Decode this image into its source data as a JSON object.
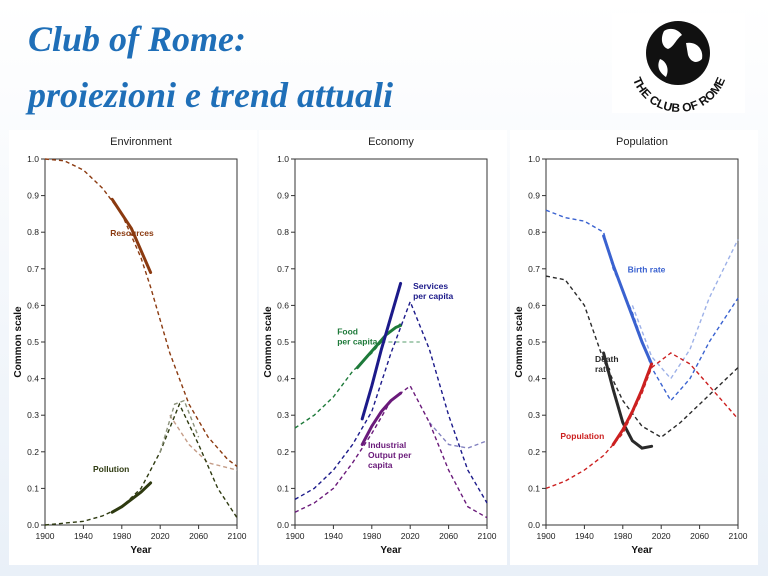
{
  "slide": {
    "title_line1": "Club of Rome:",
    "title_line2": "proiezioni e trend attuali"
  },
  "logo": {
    "text": "THE CLUB OF ROME"
  },
  "colors": {
    "title": "#1f6fb8",
    "resources": "#8b3a10",
    "pollution": "#2e3a10",
    "food": "#1e7a3a",
    "services": "#1c1a8a",
    "output": "#6a1a7a",
    "birth": "#3a62d0",
    "death": "#2a2a2a",
    "population": "#cc2020"
  },
  "chart_data": [
    {
      "type": "line",
      "title": "Environment",
      "xlabel": "Year",
      "ylabel": "Common scale",
      "xlim": [
        1900,
        2100
      ],
      "ylim": [
        0,
        1.0
      ],
      "xticks": [
        "1900",
        "1940",
        "1980",
        "2020",
        "2060",
        "2100"
      ],
      "yticks": [
        "0.0",
        "0.1",
        "0.2",
        "0.3",
        "0.4",
        "0.5",
        "0.6",
        "0.7",
        "0.8",
        "0.9",
        "1.0"
      ],
      "series": [
        {
          "name": "Resources",
          "label": "Resources",
          "label_x": 1968,
          "label_y": 0.79,
          "color": "#8b3a10",
          "projection": {
            "x": [
              1900,
              1920,
              1940,
              1960,
              1980,
              2000,
              2010,
              2030,
              2050,
              2070,
              2090,
              2100
            ],
            "y": [
              1.0,
              0.995,
              0.97,
              0.92,
              0.85,
              0.73,
              0.65,
              0.47,
              0.33,
              0.24,
              0.18,
              0.16
            ]
          },
          "alt": {
            "x": [
              2030,
              2050,
              2070,
              2100
            ],
            "y": [
              0.3,
              0.22,
              0.17,
              0.15
            ]
          },
          "projection_light": {
            "x": [],
            "y": []
          },
          "observed": {
            "x": [
              1970,
              1980,
              1990,
              2000,
              2010
            ],
            "y": [
              0.89,
              0.85,
              0.81,
              0.75,
              0.69
            ]
          }
        },
        {
          "name": "Pollution",
          "label": "Pollution",
          "label_x": 1950,
          "label_y": 0.145,
          "color": "#2e3a10",
          "projection": {
            "x": [
              1900,
              1940,
              1960,
              1980,
              2000,
              2020,
              2040,
              2060,
              2080,
              2100
            ],
            "y": [
              0.0,
              0.01,
              0.025,
              0.05,
              0.1,
              0.2,
              0.33,
              0.22,
              0.1,
              0.02
            ]
          },
          "alt": {
            "x": [],
            "y": []
          },
          "projection_light": {
            "x": [
              2020,
              2035,
              2045,
              2060
            ],
            "y": [
              0.2,
              0.33,
              0.34,
              0.24
            ]
          },
          "observed": {
            "x": [
              1970,
              1980,
              1990,
              2000,
              2010
            ],
            "y": [
              0.035,
              0.05,
              0.07,
              0.09,
              0.115
            ]
          }
        }
      ]
    },
    {
      "type": "line",
      "title": "Economy",
      "xlabel": "Year",
      "ylabel": "Common scale",
      "xlim": [
        1900,
        2100
      ],
      "ylim": [
        0,
        1.0
      ],
      "xticks": [
        "1900",
        "1940",
        "1980",
        "2020",
        "2060",
        "2100"
      ],
      "yticks": [
        "0.0",
        "0.1",
        "0.2",
        "0.3",
        "0.4",
        "0.5",
        "0.6",
        "0.7",
        "0.8",
        "0.9",
        "1.0"
      ],
      "series": [
        {
          "name": "Food per capita",
          "label": "Food\nper capita",
          "label_x": 1944,
          "label_y": 0.52,
          "color": "#1e7a3a",
          "projection": {
            "x": [
              1900,
              1920,
              1940,
              1960,
              1980,
              2000,
              2010
            ],
            "y": [
              0.265,
              0.3,
              0.35,
              0.42,
              0.47,
              0.53,
              0.55
            ]
          },
          "alt": {
            "x": [
              1990,
              2010,
              2030
            ],
            "y": [
              0.5,
              0.5,
              0.5
            ]
          },
          "projection_light": {
            "x": [],
            "y": []
          },
          "observed": {
            "x": [
              1965,
              1975,
              1985,
              1995,
              2005,
              2010
            ],
            "y": [
              0.43,
              0.46,
              0.49,
              0.52,
              0.54,
              0.545
            ]
          }
        },
        {
          "name": "Services per capita",
          "label": "Services\nper capita",
          "label_x": 2023,
          "label_y": 0.645,
          "color": "#1c1a8a",
          "projection": {
            "x": [
              1900,
              1920,
              1940,
              1960,
              1980,
              2000,
              2020,
              2040,
              2060,
              2080,
              2100
            ],
            "y": [
              0.07,
              0.1,
              0.15,
              0.22,
              0.31,
              0.47,
              0.61,
              0.48,
              0.3,
              0.15,
              0.06
            ]
          },
          "alt": {
            "x": [],
            "y": []
          },
          "projection_light": {
            "x": [
              2040,
              2060,
              2080,
              2100
            ],
            "y": [
              0.28,
              0.22,
              0.21,
              0.23
            ]
          },
          "observed": {
            "x": [
              1970,
              1980,
              1990,
              2000,
              2010
            ],
            "y": [
              0.29,
              0.38,
              0.48,
              0.57,
              0.66
            ]
          }
        },
        {
          "name": "Industrial Output per capita",
          "label": "Industrial\nOutput per\ncapita",
          "label_x": 1976,
          "label_y": 0.21,
          "color": "#6a1a7a",
          "projection": {
            "x": [
              1900,
              1920,
              1940,
              1960,
              1980,
              2000,
              2020,
              2040,
              2060,
              2080,
              2100
            ],
            "y": [
              0.035,
              0.06,
              0.1,
              0.17,
              0.25,
              0.34,
              0.38,
              0.28,
              0.15,
              0.05,
              0.02
            ]
          },
          "alt": {
            "x": [],
            "y": []
          },
          "projection_light": {
            "x": [],
            "y": []
          },
          "observed": {
            "x": [
              1970,
              1980,
              1990,
              2000,
              2010
            ],
            "y": [
              0.22,
              0.27,
              0.31,
              0.34,
              0.36
            ]
          }
        }
      ]
    },
    {
      "type": "line",
      "title": "Population",
      "xlabel": "Year",
      "ylabel": "Common scale",
      "xlim": [
        1900,
        2100
      ],
      "ylim": [
        0,
        1.0
      ],
      "xticks": [
        "1900",
        "1940",
        "1980",
        "2020",
        "2060",
        "2100"
      ],
      "yticks": [
        "0.0",
        "0.1",
        "0.2",
        "0.3",
        "0.4",
        "0.5",
        "0.6",
        "0.7",
        "0.8",
        "0.9",
        "1.0"
      ],
      "series": [
        {
          "name": "Birth rate",
          "label": "Birth rate",
          "label_x": 1985,
          "label_y": 0.69,
          "color": "#3a62d0",
          "projection": {
            "x": [
              1900,
              1920,
              1940,
              1960,
              1970,
              1990,
              2010,
              2030,
              2050,
              2070,
              2090,
              2100
            ],
            "y": [
              0.86,
              0.84,
              0.83,
              0.8,
              0.7,
              0.58,
              0.43,
              0.34,
              0.4,
              0.5,
              0.58,
              0.62
            ]
          },
          "alt": {
            "x": [
              1990,
              2010,
              2030,
              2050,
              2070,
              2100
            ],
            "y": [
              0.6,
              0.46,
              0.4,
              0.48,
              0.62,
              0.78
            ]
          },
          "projection_light": {
            "x": [],
            "y": []
          },
          "observed": {
            "x": [
              1960,
              1970,
              1980,
              1990,
              2000,
              2010
            ],
            "y": [
              0.79,
              0.71,
              0.64,
              0.57,
              0.5,
              0.44
            ]
          }
        },
        {
          "name": "Death rate",
          "label": "Death\nrate",
          "label_x": 1951,
          "label_y": 0.445,
          "color": "#2a2a2a",
          "projection": {
            "x": [
              1900,
              1920,
              1940,
              1960,
              1980,
              2000,
              2020,
              2040,
              2060,
              2080,
              2100
            ],
            "y": [
              0.68,
              0.67,
              0.6,
              0.45,
              0.34,
              0.27,
              0.24,
              0.28,
              0.33,
              0.38,
              0.43
            ]
          },
          "alt": {
            "x": [],
            "y": []
          },
          "projection_light": {
            "x": [],
            "y": []
          },
          "observed": {
            "x": [
              1960,
              1970,
              1980,
              1990,
              2000,
              2010
            ],
            "y": [
              0.47,
              0.37,
              0.28,
              0.23,
              0.21,
              0.215
            ]
          }
        },
        {
          "name": "Population",
          "label": "Population",
          "label_x": 1915,
          "label_y": 0.235,
          "color": "#cc2020",
          "projection": {
            "x": [
              1900,
              1920,
              1940,
              1960,
              1980,
              2000,
              2010,
              2030,
              2050,
              2070,
              2090,
              2100
            ],
            "y": [
              0.1,
              0.12,
              0.15,
              0.19,
              0.25,
              0.36,
              0.43,
              0.47,
              0.44,
              0.38,
              0.32,
              0.29
            ]
          },
          "alt": {
            "x": [],
            "y": []
          },
          "projection_light": {
            "x": [],
            "y": []
          },
          "observed": {
            "x": [
              1970,
              1980,
              1990,
              2000,
              2010
            ],
            "y": [
              0.22,
              0.26,
              0.31,
              0.37,
              0.44
            ]
          }
        }
      ]
    }
  ]
}
